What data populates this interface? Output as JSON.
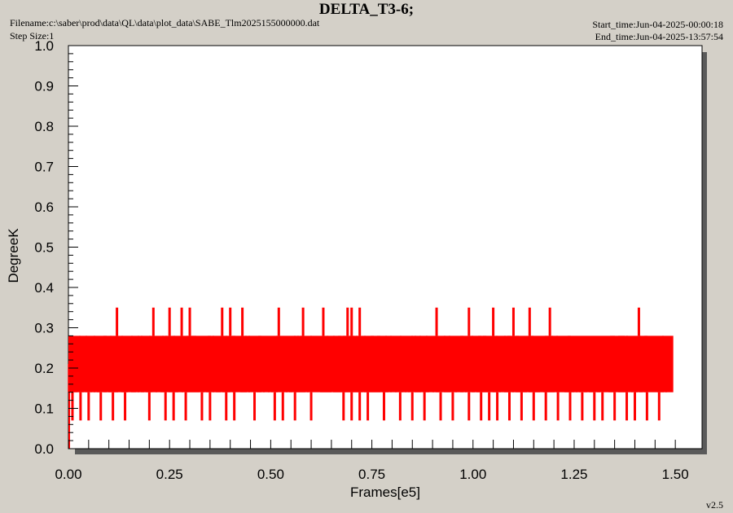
{
  "header": {
    "title": "DELTA_T3-6;",
    "filename": "Filename:c:\\saber\\prod\\data\\QL\\data\\plot_data\\SABE_Tlm2025155000000.dat",
    "step_size": "Step Size:1",
    "start_time": "Start_time:Jun-04-2025-00:00:18",
    "end_time": "End_time:Jun-04-2025-13:57:54"
  },
  "version": "v2.5",
  "colors": {
    "series": "#ff0000",
    "background": "#d4d0c8",
    "plot_area": "#ffffff",
    "shadow": "#5a5a5a"
  },
  "chart_data": {
    "type": "line",
    "title": "DELTA_T3-6;",
    "xlabel": "Frames[e5]",
    "ylabel": "DegreeK",
    "xlim": [
      0,
      1.55
    ],
    "ylim": [
      0,
      1.0
    ],
    "xticks": [
      "0.00",
      "0.25",
      "0.50",
      "0.75",
      "1.00",
      "1.25",
      "1.50"
    ],
    "yticks": [
      "0.0",
      "0.1",
      "0.2",
      "0.3",
      "0.4",
      "0.5",
      "0.6",
      "0.7",
      "0.8",
      "0.9",
      "1.0"
    ],
    "grid": false,
    "series": [
      {
        "color": "#ff0000",
        "x_range": [
          0,
          1.495
        ],
        "levels": [
          0.07,
          0.14,
          0.21,
          0.28,
          0.35
        ],
        "band_low": 0.14,
        "band_high": 0.28,
        "spikes_to_0_35_at_x": [
          0.12,
          0.21,
          0.25,
          0.28,
          0.3,
          0.38,
          0.4,
          0.43,
          0.52,
          0.58,
          0.63,
          0.69,
          0.7,
          0.72,
          0.91,
          0.99,
          1.05,
          1.1,
          1.14,
          1.19,
          1.41
        ],
        "dips_to_0_07_at_x": [
          0.01,
          0.03,
          0.05,
          0.08,
          0.11,
          0.14,
          0.2,
          0.24,
          0.26,
          0.29,
          0.33,
          0.35,
          0.39,
          0.41,
          0.46,
          0.51,
          0.53,
          0.56,
          0.6,
          0.68,
          0.7,
          0.72,
          0.74,
          0.78,
          0.82,
          0.85,
          0.88,
          0.92,
          0.95,
          0.99,
          1.02,
          1.04,
          1.06,
          1.09,
          1.12,
          1.15,
          1.18,
          1.21,
          1.24,
          1.27,
          1.3,
          1.32,
          1.35,
          1.38,
          1.4,
          1.43,
          1.46
        ],
        "initial_drop_to": 0.0
      }
    ]
  }
}
